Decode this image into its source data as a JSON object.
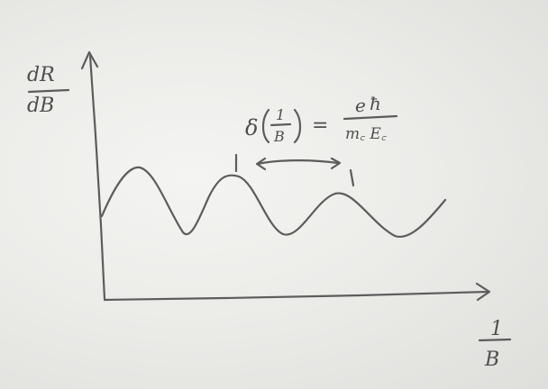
{
  "y_axis_label": {
    "numerator": "dR",
    "denominator": "dB"
  },
  "x_axis_label": {
    "numerator": "1",
    "denominator": "B"
  },
  "formula": {
    "lhs_delta": "δ",
    "lhs_num": "1",
    "lhs_den": "B",
    "equals": "=",
    "rhs_num_e": "e",
    "rhs_num_hbar": "ħ",
    "rhs_den": "m꜀ E꜀"
  },
  "curve": {
    "description_type": "oscillation",
    "peaks": 3
  }
}
